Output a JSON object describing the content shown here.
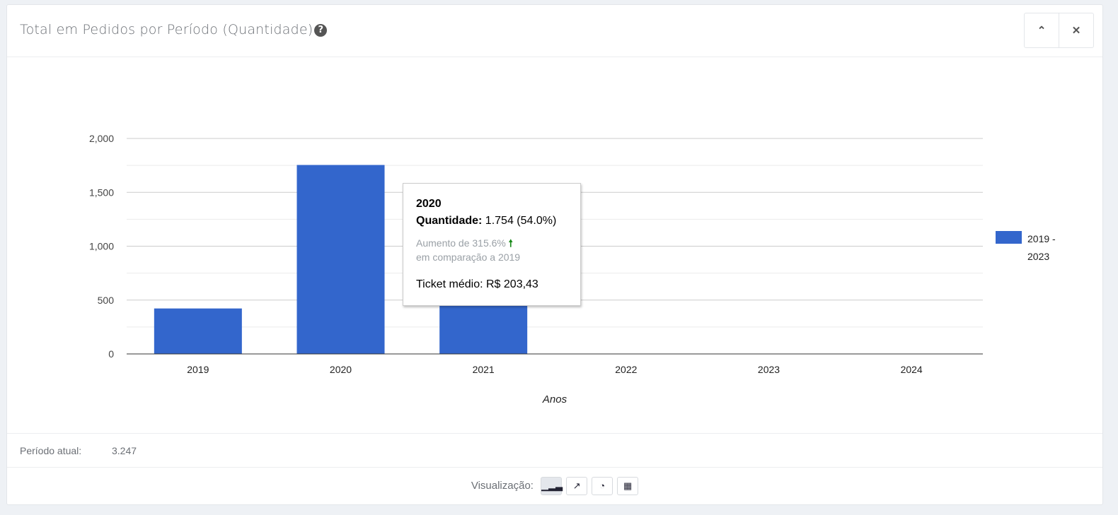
{
  "header": {
    "title": "Total em Pedidos por Período (Quantidade)",
    "help_icon": "question-circle-icon",
    "collapse_icon": "chevron-up-icon",
    "close_icon": "close-icon"
  },
  "chart_data": {
    "type": "bar",
    "categories": [
      "2019",
      "2020",
      "2021",
      "2022",
      "2023",
      "2024"
    ],
    "series": [
      {
        "name": "2019 - 2023",
        "values": [
          422,
          1754,
          1065,
          3,
          2,
          1
        ],
        "color": "#3366cc"
      }
    ],
    "xlabel": "Anos",
    "ylabel": "",
    "ylim": [
      0,
      2000
    ],
    "yticks": [
      0,
      500,
      1000,
      1500,
      2000
    ],
    "ytick_labels": [
      "0",
      "500",
      "1,000",
      "1,500",
      "2,000"
    ],
    "grid": true,
    "legend": "right"
  },
  "legend": {
    "line1": "2019 -",
    "line2": "2023"
  },
  "tooltip": {
    "year": "2020",
    "label": "Quantidade:",
    "value": "1.754 (54.0%)",
    "increase": "Aumento de 315.6%",
    "compare": "em comparação a 2019",
    "ticket": "Ticket médio: R$ 203,43"
  },
  "footer": {
    "period_label": "Período atual:",
    "period_value": "3.247",
    "view_label": "Visualização:",
    "views": [
      {
        "name": "bar-chart",
        "icon": "bar-chart-icon",
        "active": true
      },
      {
        "name": "line-chart",
        "icon": "line-chart-icon"
      },
      {
        "name": "pie-chart",
        "icon": "pie-chart-icon"
      },
      {
        "name": "table",
        "icon": "table-icon"
      }
    ]
  }
}
